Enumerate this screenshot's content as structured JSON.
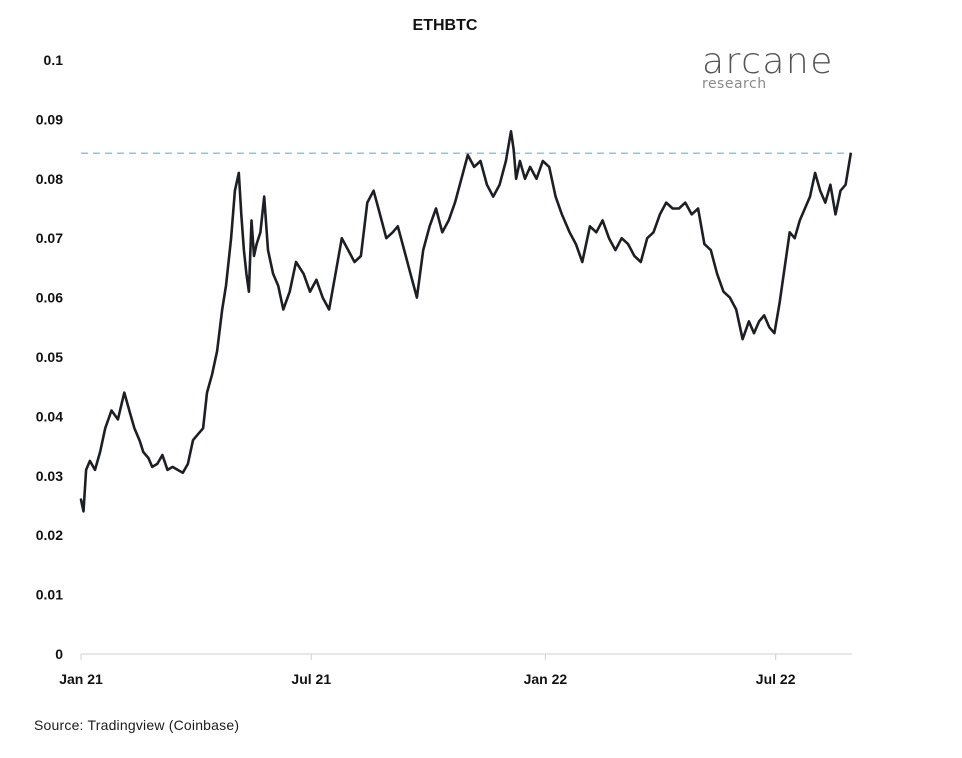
{
  "source": "Source: Tradingview (Coinbase)",
  "logo": {
    "main": "arcane",
    "sub": "research"
  },
  "colors": {
    "line": "#1d1f24",
    "reference": "#8cc4ea",
    "axis": "#cfcfcf"
  },
  "chart_data": {
    "type": "line",
    "title": "ETHBTC",
    "xlabel": "",
    "ylabel": "",
    "ylim": [
      0,
      0.1
    ],
    "yticks": [
      0,
      0.01,
      0.02,
      0.03,
      0.04,
      0.05,
      0.06,
      0.07,
      0.08,
      0.09,
      0.1
    ],
    "ytick_labels": [
      "0",
      "0.01",
      "0.02",
      "0.03",
      "0.04",
      "0.05",
      "0.06",
      "0.07",
      "0.08",
      "0.09",
      "0.1"
    ],
    "xlim": [
      "2021-01-01",
      "2022-08-30"
    ],
    "xticks": [
      "2021-01-01",
      "2021-07-01",
      "2022-01-01",
      "2022-07-01"
    ],
    "xtick_labels": [
      "Jan 21",
      "Jul 21",
      "Jan 22",
      "Jul 22"
    ],
    "grid": false,
    "reference_line": {
      "y": 0.0843,
      "style": "dashed"
    },
    "series": [
      {
        "x": [
          "2021-01-01",
          "2021-01-03",
          "2021-01-05",
          "2021-01-08",
          "2021-01-12",
          "2021-01-16",
          "2021-01-20",
          "2021-01-25",
          "2021-01-30",
          "2021-02-04",
          "2021-02-08",
          "2021-02-12",
          "2021-02-16",
          "2021-02-19",
          "2021-02-23",
          "2021-02-26",
          "2021-03-02",
          "2021-03-06",
          "2021-03-10",
          "2021-03-14",
          "2021-03-18",
          "2021-03-22",
          "2021-03-26",
          "2021-03-30",
          "2021-04-03",
          "2021-04-07",
          "2021-04-10",
          "2021-04-14",
          "2021-04-18",
          "2021-04-22",
          "2021-04-25",
          "2021-04-29",
          "2021-05-02",
          "2021-05-05",
          "2021-05-07",
          "2021-05-09",
          "2021-05-11",
          "2021-05-13",
          "2021-05-15",
          "2021-05-17",
          "2021-05-19",
          "2021-05-22",
          "2021-05-25",
          "2021-05-28",
          "2021-06-01",
          "2021-06-05",
          "2021-06-09",
          "2021-06-14",
          "2021-06-19",
          "2021-06-25",
          "2021-06-30",
          "2021-07-05",
          "2021-07-10",
          "2021-07-15",
          "2021-07-20",
          "2021-07-25",
          "2021-07-30",
          "2021-08-04",
          "2021-08-09",
          "2021-08-14",
          "2021-08-19",
          "2021-08-24",
          "2021-08-29",
          "2021-09-03",
          "2021-09-07",
          "2021-09-12",
          "2021-09-17",
          "2021-09-22",
          "2021-09-27",
          "2021-10-02",
          "2021-10-07",
          "2021-10-12",
          "2021-10-17",
          "2021-10-22",
          "2021-10-27",
          "2021-11-01",
          "2021-11-06",
          "2021-11-11",
          "2021-11-16",
          "2021-11-21",
          "2021-11-26",
          "2021-12-01",
          "2021-12-05",
          "2021-12-07",
          "2021-12-09",
          "2021-12-12",
          "2021-12-16",
          "2021-12-20",
          "2021-12-25",
          "2021-12-30",
          "2022-01-04",
          "2022-01-09",
          "2022-01-14",
          "2022-01-20",
          "2022-01-25",
          "2022-01-30",
          "2022-02-05",
          "2022-02-10",
          "2022-02-15",
          "2022-02-20",
          "2022-02-25",
          "2022-03-02",
          "2022-03-07",
          "2022-03-12",
          "2022-03-17",
          "2022-03-22",
          "2022-03-27",
          "2022-04-01",
          "2022-04-06",
          "2022-04-11",
          "2022-04-16",
          "2022-04-21",
          "2022-04-26",
          "2022-05-01",
          "2022-05-06",
          "2022-05-11",
          "2022-05-16",
          "2022-05-21",
          "2022-05-26",
          "2022-05-31",
          "2022-06-05",
          "2022-06-10",
          "2022-06-14",
          "2022-06-18",
          "2022-06-22",
          "2022-06-26",
          "2022-06-30",
          "2022-07-04",
          "2022-07-08",
          "2022-07-12",
          "2022-07-16",
          "2022-07-20",
          "2022-07-24",
          "2022-07-28",
          "2022-08-01",
          "2022-08-05",
          "2022-08-09",
          "2022-08-13",
          "2022-08-17",
          "2022-08-21",
          "2022-08-25",
          "2022-08-29"
        ],
        "values": [
          0.026,
          0.024,
          0.031,
          0.0325,
          0.031,
          0.034,
          0.038,
          0.041,
          0.0395,
          0.044,
          0.041,
          0.038,
          0.036,
          0.034,
          0.033,
          0.0315,
          0.032,
          0.0335,
          0.031,
          0.0315,
          0.031,
          0.0305,
          0.032,
          0.036,
          0.037,
          0.038,
          0.044,
          0.047,
          0.051,
          0.058,
          0.062,
          0.07,
          0.078,
          0.081,
          0.074,
          0.068,
          0.064,
          0.061,
          0.073,
          0.067,
          0.069,
          0.071,
          0.077,
          0.068,
          0.064,
          0.062,
          0.058,
          0.061,
          0.066,
          0.064,
          0.061,
          0.063,
          0.06,
          0.058,
          0.064,
          0.07,
          0.068,
          0.066,
          0.067,
          0.076,
          0.078,
          0.074,
          0.07,
          0.071,
          0.072,
          0.068,
          0.064,
          0.06,
          0.068,
          0.072,
          0.075,
          0.071,
          0.073,
          0.076,
          0.08,
          0.084,
          0.082,
          0.083,
          0.079,
          0.077,
          0.079,
          0.083,
          0.088,
          0.085,
          0.08,
          0.083,
          0.08,
          0.082,
          0.08,
          0.083,
          0.082,
          0.077,
          0.074,
          0.071,
          0.069,
          0.066,
          0.072,
          0.071,
          0.073,
          0.07,
          0.068,
          0.07,
          0.069,
          0.067,
          0.066,
          0.07,
          0.071,
          0.074,
          0.076,
          0.075,
          0.075,
          0.076,
          0.074,
          0.075,
          0.069,
          0.068,
          0.064,
          0.061,
          0.06,
          0.058,
          0.053,
          0.056,
          0.054,
          0.056,
          0.057,
          0.055,
          0.054,
          0.059,
          0.065,
          0.071,
          0.07,
          0.073,
          0.075,
          0.077,
          0.081,
          0.078,
          0.076,
          0.079,
          0.074,
          0.078,
          0.079,
          0.0842
        ]
      }
    ]
  }
}
